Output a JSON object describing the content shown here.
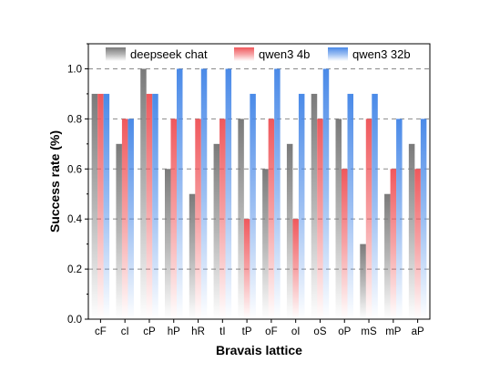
{
  "chart_data": {
    "type": "bar",
    "xlabel": "Bravais lattice",
    "ylabel": "Success rate (%)",
    "ylim": [
      0,
      1.1
    ],
    "yticks": [
      "0.0",
      "0.2",
      "0.4",
      "0.6",
      "0.8",
      "1.0"
    ],
    "grid": "horizontal dashed",
    "legend_position": "top",
    "categories": [
      "cF",
      "cI",
      "cP",
      "hP",
      "hR",
      "tI",
      "tP",
      "oF",
      "oI",
      "oS",
      "oP",
      "mS",
      "mP",
      "aP"
    ],
    "series": [
      {
        "name": "deepseek chat",
        "color": "#7a7a7a",
        "values": [
          0.9,
          0.7,
          1.0,
          0.6,
          0.5,
          0.7,
          0.8,
          0.6,
          0.7,
          0.9,
          0.8,
          0.3,
          0.5,
          0.7
        ]
      },
      {
        "name": "qwen3 4b",
        "color": "#f0585c",
        "values": [
          0.9,
          0.8,
          0.9,
          0.8,
          0.8,
          0.8,
          0.4,
          0.8,
          0.4,
          0.8,
          0.6,
          0.8,
          0.6,
          0.6
        ]
      },
      {
        "name": "qwen3 32b",
        "color": "#4a8ae8",
        "values": [
          0.9,
          0.8,
          0.9,
          1.0,
          1.0,
          1.0,
          0.9,
          1.0,
          0.9,
          1.0,
          0.9,
          0.9,
          0.8,
          0.8
        ]
      }
    ]
  }
}
